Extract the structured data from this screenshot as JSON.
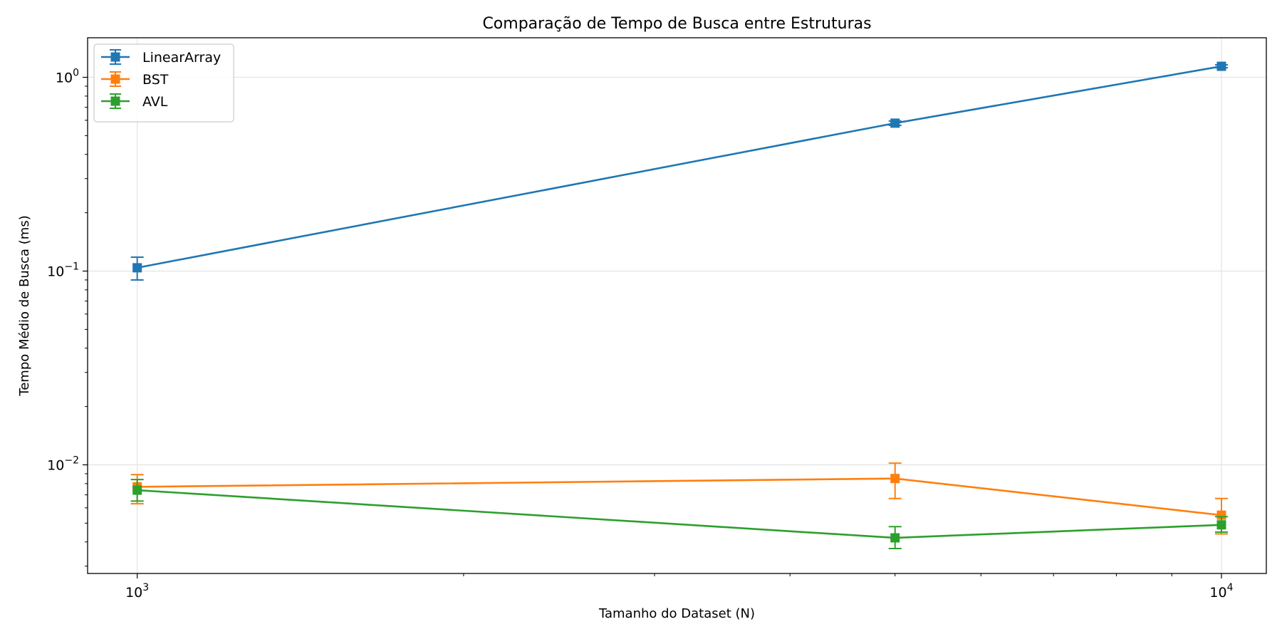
{
  "chart_data": {
    "type": "line",
    "title": "Comparação de Tempo de Busca entre Estruturas",
    "xlabel": "Tamanho do Dataset (N)",
    "ylabel": "Tempo Médio de Busca (ms)",
    "x_scale": "log",
    "y_scale": "log",
    "xlim": [
      900,
      11000
    ],
    "ylim": [
      0.00275,
      1.6
    ],
    "grid": true,
    "legend_position": "top-left",
    "x_ticks": [
      {
        "value": 1000,
        "base": "10",
        "exp": "3"
      },
      {
        "value": 10000,
        "base": "10",
        "exp": "4"
      }
    ],
    "y_ticks": [
      {
        "value": 0.01,
        "base": "10",
        "exp": "−2"
      },
      {
        "value": 0.1,
        "base": "10",
        "exp": "−1"
      },
      {
        "value": 1,
        "base": "10",
        "exp": "0"
      }
    ],
    "x": [
      1000,
      5000,
      10000
    ],
    "series": [
      {
        "name": "LinearArray",
        "color": "#1f77b4",
        "marker": "square",
        "values": [
          0.104,
          0.58,
          1.14
        ],
        "err_low": [
          0.09,
          0.565,
          1.12
        ],
        "err_high": [
          0.118,
          0.595,
          1.16
        ]
      },
      {
        "name": "BST",
        "color": "#ff7f0e",
        "marker": "square",
        "values": [
          0.0077,
          0.0085,
          0.0055
        ],
        "err_low": [
          0.0063,
          0.0067,
          0.0044
        ],
        "err_high": [
          0.0089,
          0.0102,
          0.0067
        ]
      },
      {
        "name": "AVL",
        "color": "#2ca02c",
        "marker": "square",
        "values": [
          0.0074,
          0.0042,
          0.0049
        ],
        "err_low": [
          0.0065,
          0.0037,
          0.0045
        ],
        "err_high": [
          0.0084,
          0.0048,
          0.0054
        ]
      }
    ]
  }
}
